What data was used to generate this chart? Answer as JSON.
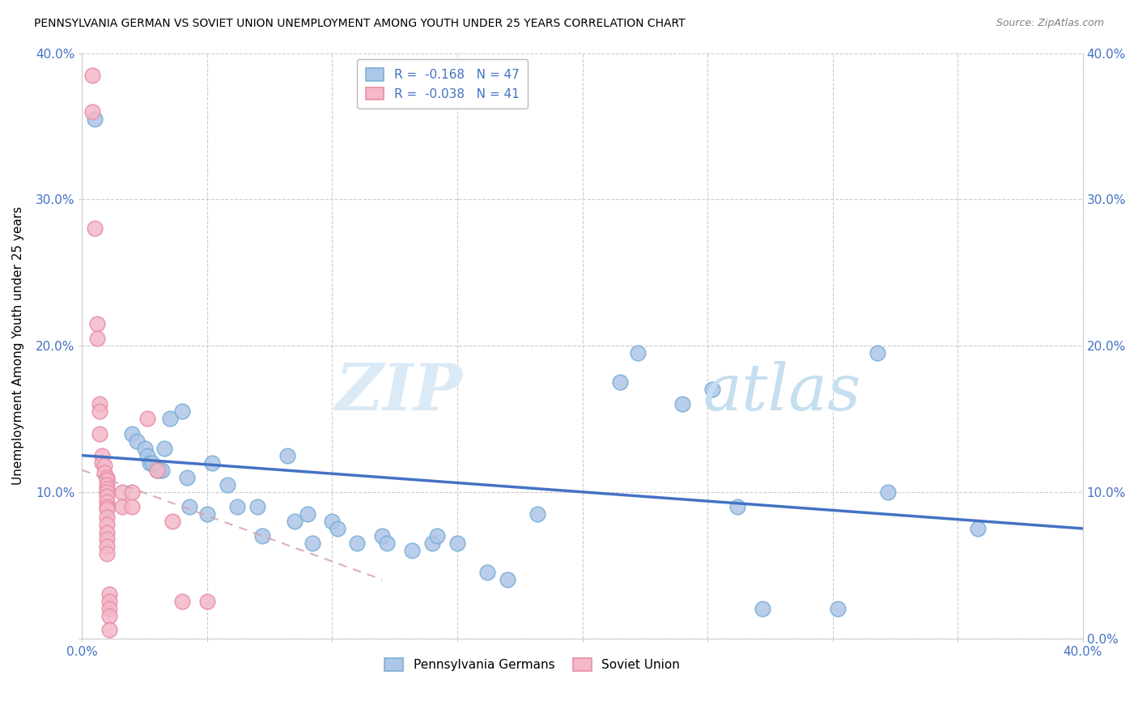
{
  "title": "PENNSYLVANIA GERMAN VS SOVIET UNION UNEMPLOYMENT AMONG YOUTH UNDER 25 YEARS CORRELATION CHART",
  "source": "Source: ZipAtlas.com",
  "ylabel": "Unemployment Among Youth under 25 years",
  "xlim": [
    0.0,
    0.4
  ],
  "ylim": [
    0.0,
    0.4
  ],
  "legend_label_pa": "Pennsylvania Germans",
  "legend_label_su": "Soviet Union",
  "pa_color": "#aec6e8",
  "su_color": "#f4b8c8",
  "pa_edge_color": "#7bafd4",
  "su_edge_color": "#e88fa8",
  "trendline_pa_color": "#4472c4",
  "trendline_su_color": "#d4a0b0",
  "pa_r": -0.168,
  "pa_n": 47,
  "su_r": -0.038,
  "su_n": 41,
  "pa_trendline": [
    [
      0.0,
      0.125
    ],
    [
      0.4,
      0.075
    ]
  ],
  "su_trendline": [
    [
      0.0,
      0.115
    ],
    [
      0.12,
      0.04
    ]
  ],
  "pa_points": [
    [
      0.005,
      0.355
    ],
    [
      0.02,
      0.14
    ],
    [
      0.022,
      0.135
    ],
    [
      0.025,
      0.13
    ],
    [
      0.026,
      0.125
    ],
    [
      0.027,
      0.12
    ],
    [
      0.028,
      0.12
    ],
    [
      0.03,
      0.115
    ],
    [
      0.031,
      0.115
    ],
    [
      0.032,
      0.115
    ],
    [
      0.033,
      0.13
    ],
    [
      0.035,
      0.15
    ],
    [
      0.04,
      0.155
    ],
    [
      0.042,
      0.11
    ],
    [
      0.043,
      0.09
    ],
    [
      0.05,
      0.085
    ],
    [
      0.052,
      0.12
    ],
    [
      0.058,
      0.105
    ],
    [
      0.062,
      0.09
    ],
    [
      0.07,
      0.09
    ],
    [
      0.072,
      0.07
    ],
    [
      0.082,
      0.125
    ],
    [
      0.085,
      0.08
    ],
    [
      0.09,
      0.085
    ],
    [
      0.092,
      0.065
    ],
    [
      0.1,
      0.08
    ],
    [
      0.102,
      0.075
    ],
    [
      0.11,
      0.065
    ],
    [
      0.12,
      0.07
    ],
    [
      0.122,
      0.065
    ],
    [
      0.132,
      0.06
    ],
    [
      0.14,
      0.065
    ],
    [
      0.142,
      0.07
    ],
    [
      0.15,
      0.065
    ],
    [
      0.162,
      0.045
    ],
    [
      0.17,
      0.04
    ],
    [
      0.182,
      0.085
    ],
    [
      0.215,
      0.175
    ],
    [
      0.222,
      0.195
    ],
    [
      0.24,
      0.16
    ],
    [
      0.252,
      0.17
    ],
    [
      0.262,
      0.09
    ],
    [
      0.272,
      0.02
    ],
    [
      0.302,
      0.02
    ],
    [
      0.318,
      0.195
    ],
    [
      0.322,
      0.1
    ],
    [
      0.358,
      0.075
    ]
  ],
  "su_points": [
    [
      0.004,
      0.385
    ],
    [
      0.004,
      0.36
    ],
    [
      0.005,
      0.28
    ],
    [
      0.006,
      0.215
    ],
    [
      0.006,
      0.205
    ],
    [
      0.007,
      0.16
    ],
    [
      0.007,
      0.155
    ],
    [
      0.007,
      0.14
    ],
    [
      0.008,
      0.125
    ],
    [
      0.008,
      0.12
    ],
    [
      0.009,
      0.118
    ],
    [
      0.009,
      0.113
    ],
    [
      0.01,
      0.11
    ],
    [
      0.01,
      0.108
    ],
    [
      0.01,
      0.105
    ],
    [
      0.01,
      0.102
    ],
    [
      0.01,
      0.1
    ],
    [
      0.01,
      0.097
    ],
    [
      0.01,
      0.093
    ],
    [
      0.01,
      0.09
    ],
    [
      0.01,
      0.088
    ],
    [
      0.01,
      0.083
    ],
    [
      0.01,
      0.078
    ],
    [
      0.01,
      0.072
    ],
    [
      0.01,
      0.068
    ],
    [
      0.01,
      0.063
    ],
    [
      0.01,
      0.058
    ],
    [
      0.011,
      0.03
    ],
    [
      0.011,
      0.025
    ],
    [
      0.011,
      0.02
    ],
    [
      0.011,
      0.015
    ],
    [
      0.011,
      0.006
    ],
    [
      0.016,
      0.1
    ],
    [
      0.016,
      0.09
    ],
    [
      0.02,
      0.1
    ],
    [
      0.02,
      0.09
    ],
    [
      0.026,
      0.15
    ],
    [
      0.03,
      0.115
    ],
    [
      0.036,
      0.08
    ],
    [
      0.04,
      0.025
    ],
    [
      0.05,
      0.025
    ]
  ]
}
